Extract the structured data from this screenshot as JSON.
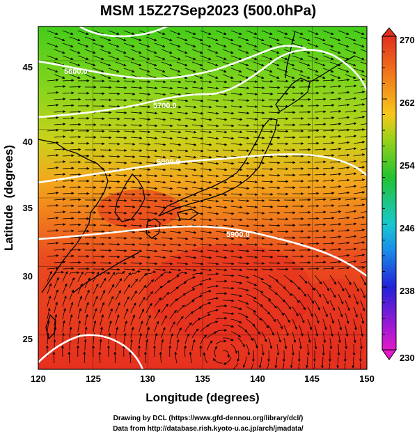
{
  "title": "MSM 15Z27Sep2023 (500.0hPa)",
  "xlabel": "Longitude (degrees)",
  "ylabel": "Latitude  (degrees)",
  "x_ticks": [
    "120",
    "125",
    "130",
    "135",
    "140",
    "145",
    "150"
  ],
  "y_ticks": [
    "25",
    "30",
    "35",
    "40",
    "45"
  ],
  "colorbar_ticks": [
    "270",
    "262",
    "254",
    "246",
    "238",
    "230"
  ],
  "contour_labels": [
    "5600.0",
    "5700.0",
    "5800.0",
    "5900.0"
  ],
  "credit_line1": "Drawing by DCL (https://www.gfd-dennou.org/library/dcl/)",
  "credit_line2": "Data from http://database.rish.kyoto-u.ac.jp/arch/jmadata/",
  "colors": {
    "warm": "#e8301f",
    "mid": "#f08a1c",
    "cool": "#7ed21a",
    "contour": "#ffffff",
    "frame": "#000000"
  },
  "map_data": {
    "lon_range": [
      120,
      150
    ],
    "lat_range": [
      22.5,
      47.5
    ],
    "field": "temperature (K)",
    "field_range": [
      230,
      270
    ],
    "contour_field": "geopotential height (m)",
    "contour_values": [
      5600,
      5700,
      5800,
      5900
    ]
  }
}
